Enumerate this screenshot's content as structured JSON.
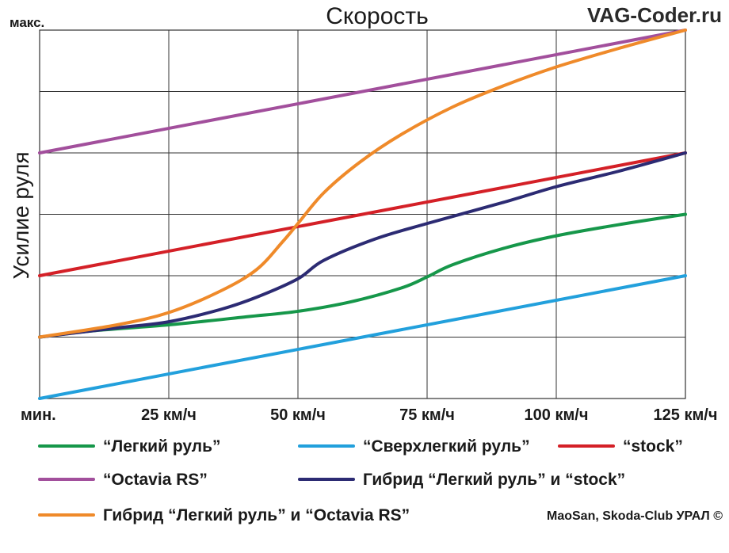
{
  "chart_data": {
    "type": "line",
    "title": "Скорость",
    "watermark": "VAG-Coder.ru",
    "credit": "MaoSan, Skoda-Club УРАЛ ©",
    "y_top_label": "макс.",
    "ylabel": "Усилие руля",
    "x_ticks": [
      "мин.",
      "25 км/ч",
      "50 км/ч",
      "75 км/ч",
      "100 км/ч",
      "125 км/ч"
    ],
    "x": [
      0,
      25,
      50,
      75,
      100,
      125
    ],
    "xlim": [
      0,
      125
    ],
    "ylim": [
      0,
      6
    ],
    "grid": true,
    "series": [
      {
        "name": "“Легкий руль”",
        "color": "#16974a",
        "points": [
          [
            0,
            1.0
          ],
          [
            10,
            1.1
          ],
          [
            25,
            1.2
          ],
          [
            40,
            1.33
          ],
          [
            50,
            1.42
          ],
          [
            60,
            1.57
          ],
          [
            70,
            1.8
          ],
          [
            75,
            1.98
          ],
          [
            80,
            2.18
          ],
          [
            90,
            2.45
          ],
          [
            100,
            2.65
          ],
          [
            112,
            2.83
          ],
          [
            125,
            3.0
          ]
        ]
      },
      {
        "name": "“Сверхлегкий руль”",
        "color": "#22a0dc",
        "points": [
          [
            0,
            0
          ],
          [
            125,
            2.0
          ]
        ]
      },
      {
        "name": "“stock”",
        "color": "#d42027",
        "points": [
          [
            0,
            2.0
          ],
          [
            125,
            4.0
          ]
        ]
      },
      {
        "name": "“Octavia RS”",
        "color": "#a24f9c",
        "points": [
          [
            0,
            4.0
          ],
          [
            125,
            6.0
          ]
        ]
      },
      {
        "name": "Гибрид “Легкий руль” и “stock”",
        "color": "#2c2b73",
        "points": [
          [
            0,
            1.0
          ],
          [
            15,
            1.15
          ],
          [
            25,
            1.25
          ],
          [
            35,
            1.45
          ],
          [
            42,
            1.65
          ],
          [
            50,
            1.95
          ],
          [
            55,
            2.25
          ],
          [
            65,
            2.6
          ],
          [
            75,
            2.85
          ],
          [
            90,
            3.2
          ],
          [
            100,
            3.45
          ],
          [
            112,
            3.7
          ],
          [
            125,
            4.0
          ]
        ]
      },
      {
        "name": "Гибрид “Легкий руль” и “Octavia RS”",
        "color": "#ef8a2a",
        "points": [
          [
            0,
            1.0
          ],
          [
            15,
            1.2
          ],
          [
            25,
            1.4
          ],
          [
            35,
            1.75
          ],
          [
            42,
            2.1
          ],
          [
            47,
            2.55
          ],
          [
            50,
            2.85
          ],
          [
            55,
            3.35
          ],
          [
            62,
            3.85
          ],
          [
            70,
            4.3
          ],
          [
            80,
            4.75
          ],
          [
            90,
            5.1
          ],
          [
            100,
            5.4
          ],
          [
            112,
            5.7
          ],
          [
            125,
            6.0
          ]
        ]
      }
    ]
  },
  "legend": [
    {
      "label": "“Легкий руль”",
      "color": "#16974a"
    },
    {
      "label": "“Сверхлегкий руль”",
      "color": "#22a0dc"
    },
    {
      "label": "“stock”",
      "color": "#d42027"
    },
    {
      "label": "“Octavia RS”",
      "color": "#a24f9c"
    },
    {
      "label": "Гибрид “Легкий руль” и “stock”",
      "color": "#2c2b73"
    },
    {
      "label": "Гибрид “Легкий руль” и “Octavia RS”",
      "color": "#ef8a2a"
    }
  ]
}
